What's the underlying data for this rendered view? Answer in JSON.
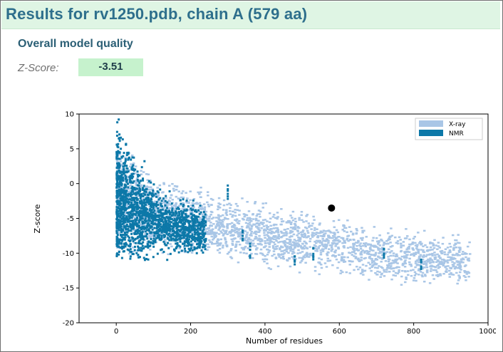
{
  "header": {
    "title": "Results for rv1250.pdb, chain A (579 aa)"
  },
  "section": {
    "title": "Overall model quality"
  },
  "zscore": {
    "label": "Z-Score:",
    "value": "-3.51"
  },
  "colors": {
    "xray": "#a9c6e6",
    "nmr": "#0c78a8",
    "marker": "#000000",
    "header_bg": "#dff5e4",
    "zscore_bg": "#c6f2cd"
  },
  "chart_data": {
    "type": "scatter",
    "xlabel": "Number of residues",
    "ylabel": "Z-score",
    "xlim": [
      -100,
      1000
    ],
    "ylim": [
      -20,
      10
    ],
    "xticks": [
      0,
      200,
      400,
      600,
      800,
      1000
    ],
    "yticks": [
      10,
      5,
      0,
      -5,
      -10,
      -15,
      -20
    ],
    "legend": {
      "position": "top-right"
    },
    "series": [
      {
        "name": "X-ray",
        "color": "#a9c6e6",
        "kind": "density",
        "trend": [
          [
            0,
            -2
          ],
          [
            100,
            -4.5
          ],
          [
            200,
            -5.5
          ],
          [
            300,
            -6.5
          ],
          [
            400,
            -7.5
          ],
          [
            500,
            -8.2
          ],
          [
            600,
            -9
          ],
          [
            700,
            -10
          ],
          [
            800,
            -10.5
          ],
          [
            900,
            -11
          ],
          [
            1000,
            -11.5
          ]
        ],
        "spread": [
          [
            0,
            10
          ],
          [
            100,
            6
          ],
          [
            300,
            5
          ],
          [
            600,
            4.5
          ],
          [
            1000,
            4
          ]
        ]
      },
      {
        "name": "NMR",
        "color": "#0c78a8",
        "kind": "density",
        "trend": [
          [
            0,
            -2
          ],
          [
            50,
            -4
          ],
          [
            100,
            -5
          ],
          [
            150,
            -6
          ],
          [
            200,
            -6.5
          ],
          [
            250,
            -7
          ]
        ],
        "spread": [
          [
            0,
            12
          ],
          [
            100,
            5
          ],
          [
            250,
            3.5
          ]
        ],
        "outliers": [
          [
            300,
            -1.5
          ],
          [
            340,
            -7.5
          ],
          [
            360,
            -9.5
          ],
          [
            480,
            -10.5
          ],
          [
            530,
            -9.8
          ],
          [
            720,
            -9.5
          ],
          [
            820,
            -12
          ]
        ]
      }
    ],
    "highlight": {
      "x": 579,
      "y": -3.51
    }
  }
}
